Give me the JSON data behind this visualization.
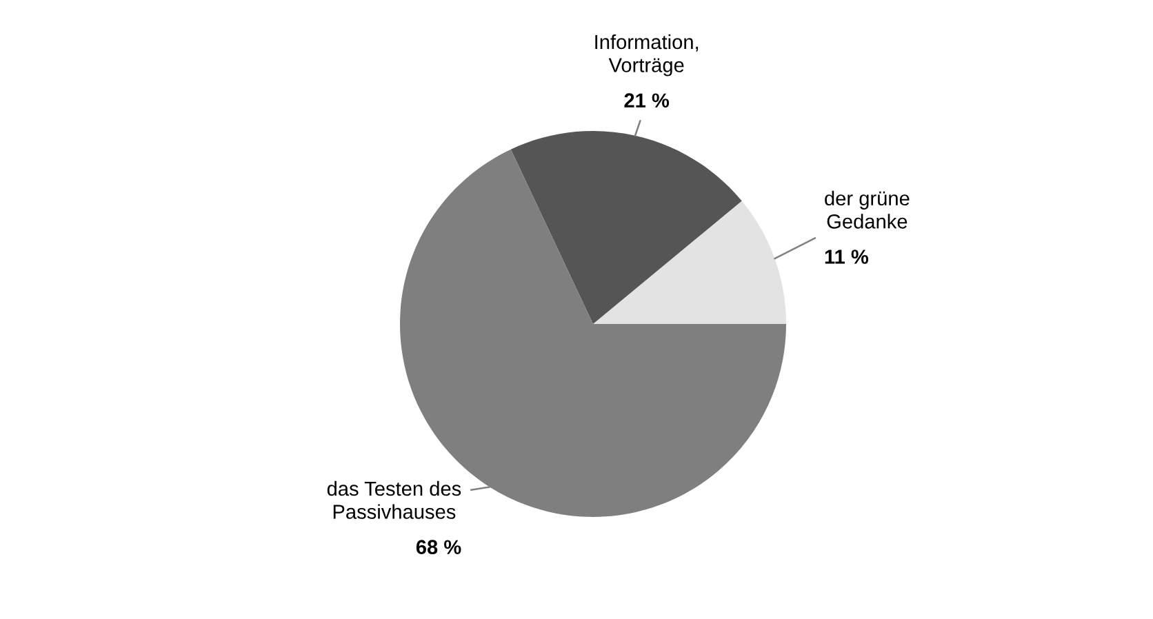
{
  "chart_data": {
    "type": "pie",
    "categories": [
      "der grüne\nGedanke",
      "Information,\nVorträge",
      "das Testen des\nPassivhauses"
    ],
    "values": [
      11,
      21,
      68
    ],
    "colors": [
      "#e3e3e3",
      "#555555",
      "#7f7f7f"
    ],
    "value_labels": [
      "11 %",
      "21 %",
      "68 %"
    ]
  }
}
